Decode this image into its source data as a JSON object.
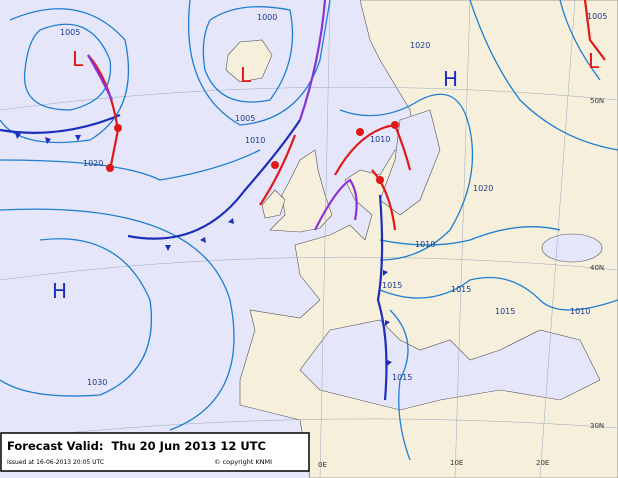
{
  "pressure_centers": [
    "L",
    "L",
    "H",
    "H",
    "L"
  ],
  "isobar_labels": [
    "1005",
    "1000",
    "1005",
    "1010",
    "1020",
    "1030",
    "1010",
    "1020",
    "1010",
    "1015",
    "1015",
    "1015",
    "1010",
    "1015",
    "1005",
    "1020"
  ],
  "grid_labels": [
    "50N",
    "40N",
    "30N",
    "0E",
    "10E",
    "20E"
  ],
  "footer": {
    "title": "Forecast Valid:  Thu 20 Jun 2013 12 UTC",
    "issued": "Issued at 16-06-2013 20:05 UTC",
    "copyright": "© copyright KNMI"
  }
}
